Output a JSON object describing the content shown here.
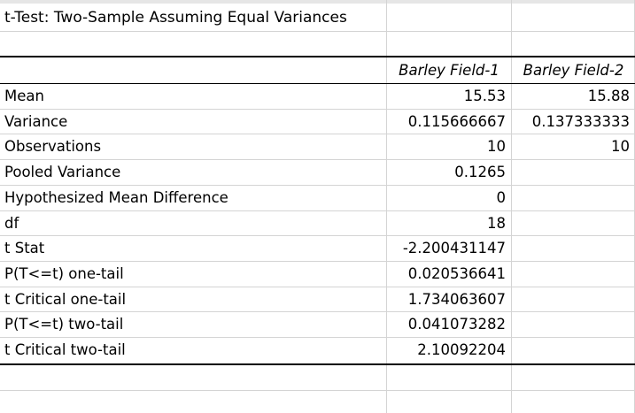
{
  "title": "t-Test: Two-Sample Assuming Equal Variances",
  "columns": [
    "Barley Field-1",
    "Barley Field-2"
  ],
  "rows": [
    {
      "label": "Mean",
      "v1": "15.53",
      "v2": "15.88"
    },
    {
      "label": "Variance",
      "v1": "0.115666667",
      "v2": "0.137333333"
    },
    {
      "label": "Observations",
      "v1": "10",
      "v2": "10"
    },
    {
      "label": "Pooled Variance",
      "v1": "0.1265",
      "v2": ""
    },
    {
      "label": "Hypothesized Mean Difference",
      "v1": "0",
      "v2": ""
    },
    {
      "label": "df",
      "v1": "18",
      "v2": ""
    },
    {
      "label": "t Stat",
      "v1": "-2.200431147",
      "v2": ""
    },
    {
      "label": "P(T<=t) one-tail",
      "v1": "0.020536641",
      "v2": ""
    },
    {
      "label": "t Critical one-tail",
      "v1": "1.734063607",
      "v2": ""
    },
    {
      "label": "P(T<=t) two-tail",
      "v1": "0.041073282",
      "v2": ""
    },
    {
      "label": "t Critical two-tail",
      "v1": "2.10092204",
      "v2": ""
    }
  ]
}
